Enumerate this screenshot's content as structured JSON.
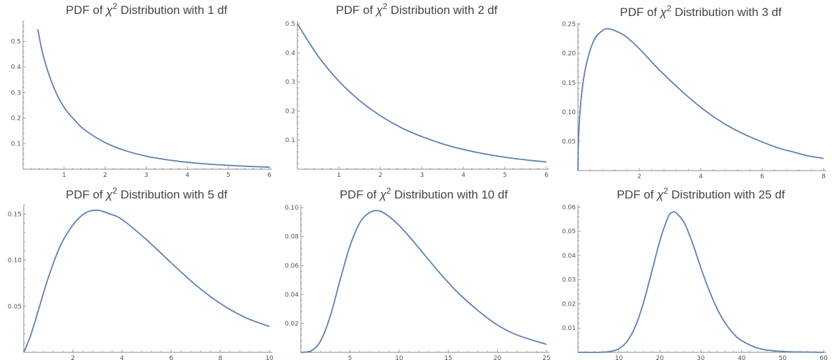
{
  "styles": {
    "curve_color": "#5b7fb4",
    "axis_color": "#888888"
  },
  "chart_data": [
    {
      "type": "line",
      "title": {
        "prefix": "PDF of ",
        "symbol": "χ",
        "superscript": "2",
        "suffix": " Distribution with 1 df"
      },
      "df": 1,
      "xlim": [
        0,
        6
      ],
      "ylim": [
        0,
        0.58
      ],
      "x_ticks": [
        1,
        2,
        3,
        4,
        5,
        6
      ],
      "x_tick_labels": [
        "1",
        "2",
        "3",
        "4",
        "5",
        "6"
      ],
      "y_ticks": [
        0.1,
        0.2,
        0.3,
        0.4,
        0.5
      ],
      "y_tick_labels": [
        "0.1",
        "0.2",
        "0.3",
        "0.4",
        "0.5"
      ],
      "x": [
        0.36,
        0.5,
        0.75,
        1,
        1.25,
        1.5,
        2,
        2.5,
        3,
        3.5,
        4,
        4.5,
        5,
        5.5,
        6
      ],
      "values": [
        0.547,
        0.439,
        0.319,
        0.242,
        0.193,
        0.154,
        0.104,
        0.072,
        0.051,
        0.037,
        0.027,
        0.02,
        0.015,
        0.011,
        0.008
      ]
    },
    {
      "type": "line",
      "title": {
        "prefix": "PDF of ",
        "symbol": "χ",
        "superscript": "2",
        "suffix": " Distribution with 2 df"
      },
      "df": 2,
      "xlim": [
        0,
        6
      ],
      "ylim": [
        0,
        0.51
      ],
      "x_ticks": [
        1,
        2,
        3,
        4,
        5,
        6
      ],
      "x_tick_labels": [
        "1",
        "2",
        "3",
        "4",
        "5",
        "6"
      ],
      "y_ticks": [
        0.1,
        0.2,
        0.3,
        0.4,
        0.5
      ],
      "y_tick_labels": [
        "0.1",
        "0.2",
        "0.3",
        "0.4",
        "0.5"
      ],
      "x": [
        0,
        0.5,
        1,
        1.5,
        2,
        2.5,
        3,
        3.5,
        4,
        4.5,
        5,
        5.5,
        6
      ],
      "values": [
        0.5,
        0.389,
        0.303,
        0.236,
        0.184,
        0.143,
        0.112,
        0.087,
        0.068,
        0.053,
        0.041,
        0.032,
        0.025
      ]
    },
    {
      "type": "line",
      "title": {
        "prefix": "PDF of ",
        "symbol": "χ",
        "superscript": "2",
        "suffix": " Distribution with 3 df"
      },
      "df": 3,
      "xlim": [
        0,
        8
      ],
      "ylim": [
        0,
        0.252
      ],
      "x_ticks": [
        2,
        4,
        6,
        8
      ],
      "x_tick_labels": [
        "2",
        "4",
        "6",
        "8"
      ],
      "y_ticks": [
        0.05,
        0.1,
        0.15,
        0.2,
        0.25
      ],
      "y_tick_labels": [
        "0.05",
        "0.10",
        "0.15",
        "0.20",
        "0.25"
      ],
      "x": [
        0,
        0.02,
        0.1,
        0.25,
        0.5,
        0.75,
        1,
        1.5,
        2,
        2.5,
        3,
        3.5,
        4,
        4.5,
        5,
        5.5,
        6,
        6.5,
        7,
        7.5,
        8
      ],
      "values": [
        0,
        0.056,
        0.12,
        0.176,
        0.22,
        0.237,
        0.242,
        0.231,
        0.208,
        0.18,
        0.154,
        0.13,
        0.108,
        0.089,
        0.073,
        0.06,
        0.049,
        0.039,
        0.032,
        0.025,
        0.021
      ]
    },
    {
      "type": "line",
      "title": {
        "prefix": "PDF of ",
        "symbol": "χ",
        "superscript": "2",
        "suffix": " Distribution with 5 df"
      },
      "df": 5,
      "xlim": [
        0,
        10
      ],
      "ylim": [
        0,
        0.16
      ],
      "x_ticks": [
        2,
        4,
        6,
        8,
        10
      ],
      "x_tick_labels": [
        "2",
        "4",
        "6",
        "8",
        "10"
      ],
      "y_ticks": [
        0.05,
        0.1,
        0.15
      ],
      "y_tick_labels": [
        "0.05",
        "0.10",
        "0.15"
      ],
      "x": [
        0,
        0.25,
        0.5,
        1,
        1.5,
        2,
        2.5,
        3,
        3.5,
        4,
        5,
        6,
        7,
        8,
        9,
        10
      ],
      "values": [
        0,
        0.016,
        0.037,
        0.081,
        0.116,
        0.138,
        0.151,
        0.154,
        0.15,
        0.144,
        0.122,
        0.097,
        0.073,
        0.053,
        0.038,
        0.028
      ]
    },
    {
      "type": "line",
      "title": {
        "prefix": "PDF of ",
        "symbol": "χ",
        "superscript": "2",
        "suffix": " Distribution with 10 df"
      },
      "df": 10,
      "xlim": [
        0,
        25
      ],
      "ylim": [
        0,
        0.102
      ],
      "x_ticks": [
        5,
        10,
        15,
        20,
        25
      ],
      "x_tick_labels": [
        "5",
        "10",
        "15",
        "20",
        "25"
      ],
      "y_ticks": [
        0.02,
        0.04,
        0.06,
        0.08,
        0.1
      ],
      "y_tick_labels": [
        "0.02",
        "0.04",
        "0.06",
        "0.08",
        "0.10"
      ],
      "x": [
        0,
        1,
        2,
        3,
        4,
        5,
        6,
        7,
        8,
        9,
        10,
        11,
        12,
        13,
        14,
        15,
        16,
        18,
        20,
        22,
        25
      ],
      "values": [
        0,
        0.0008,
        0.0077,
        0.0251,
        0.0501,
        0.0734,
        0.0896,
        0.0966,
        0.0977,
        0.0937,
        0.0877,
        0.0803,
        0.0722,
        0.064,
        0.0559,
        0.0483,
        0.0411,
        0.029,
        0.0189,
        0.012,
        0.0055
      ]
    },
    {
      "type": "line",
      "title": {
        "prefix": "PDF of ",
        "symbol": "χ",
        "superscript": "2",
        "suffix": " Distribution with 25 df"
      },
      "df": 25,
      "xlim": [
        0,
        60
      ],
      "ylim": [
        0,
        0.061
      ],
      "x_ticks": [
        10,
        20,
        30,
        40,
        50,
        60
      ],
      "x_tick_labels": [
        "10",
        "20",
        "30",
        "40",
        "50",
        "60"
      ],
      "y_ticks": [
        0.01,
        0.02,
        0.03,
        0.04,
        0.05,
        0.06
      ],
      "y_tick_labels": [
        "0.01",
        "0.02",
        "0.03",
        "0.04",
        "0.05",
        "0.06"
      ],
      "x": [
        0,
        5,
        8,
        10,
        12,
        14,
        16,
        18,
        20,
        22,
        23,
        24,
        26,
        28,
        30,
        32,
        34,
        36,
        38,
        40,
        44,
        48,
        52,
        56,
        60
      ],
      "values": [
        0,
        0,
        0.0004,
        0.0015,
        0.0045,
        0.0106,
        0.0205,
        0.0331,
        0.046,
        0.0558,
        0.0578,
        0.0576,
        0.0534,
        0.0451,
        0.035,
        0.0258,
        0.018,
        0.012,
        0.0077,
        0.0048,
        0.0017,
        0.0006,
        0.0002,
        0.0001,
        0
      ]
    }
  ]
}
